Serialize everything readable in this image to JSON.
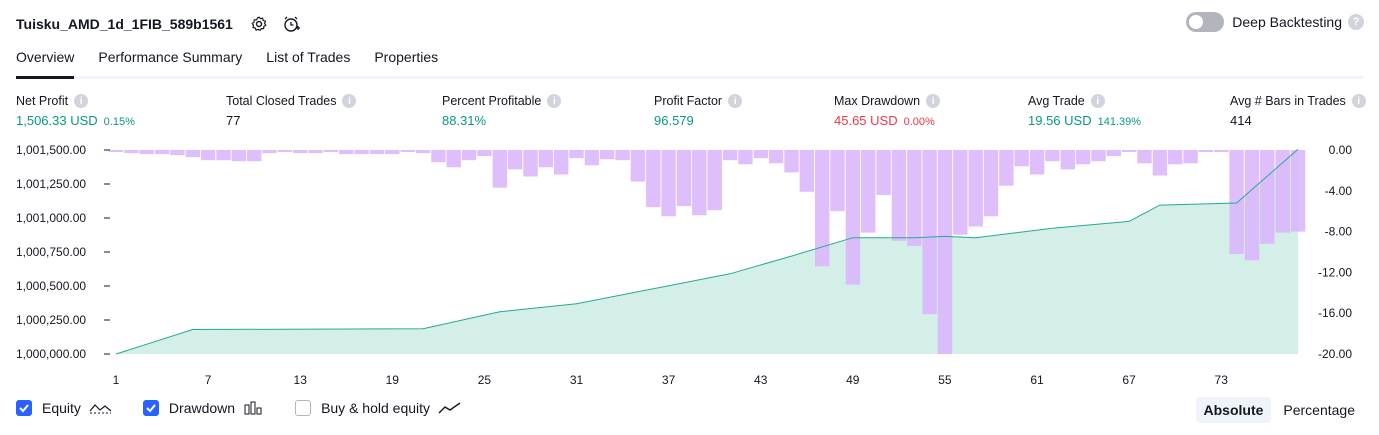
{
  "header": {
    "title": "Tuisku_AMD_1d_1FIB_589b1561",
    "settings_icon": "gear-icon",
    "alert_icon": "alarm-clock-plus-icon"
  },
  "deep_backtesting": {
    "label": "Deep Backtesting",
    "enabled": false
  },
  "tabs": [
    {
      "label": "Overview",
      "active": true
    },
    {
      "label": "Performance Summary",
      "active": false
    },
    {
      "label": "List of Trades",
      "active": false
    },
    {
      "label": "Properties",
      "active": false
    }
  ],
  "stats": {
    "net_profit": {
      "label": "Net Profit",
      "value": "1,506.33 USD",
      "pct": "0.15%"
    },
    "total_closed_trades": {
      "label": "Total Closed Trades",
      "value": "77"
    },
    "percent_profitable": {
      "label": "Percent Profitable",
      "value": "88.31%"
    },
    "profit_factor": {
      "label": "Profit Factor",
      "value": "96.579"
    },
    "max_drawdown": {
      "label": "Max Drawdown",
      "value": "45.65 USD",
      "pct": "0.00%"
    },
    "avg_trade": {
      "label": "Avg Trade",
      "value": "19.56 USD",
      "pct": "141.39%"
    },
    "avg_bars": {
      "label": "Avg # Bars in Trades",
      "value": "414"
    }
  },
  "colors": {
    "equity_line": "#22ab94",
    "equity_fill": "#d4efe7",
    "drawdown_bar": "#d9b3fb",
    "positive": "#089981",
    "negative": "#f23645",
    "accent": "#2962ff"
  },
  "chart_data": {
    "type": "area",
    "x_ticks": [
      "1",
      "7",
      "13",
      "19",
      "25",
      "31",
      "37",
      "43",
      "49",
      "55",
      "61",
      "67",
      "73"
    ],
    "left_axis": {
      "ticks": [
        "1,001,500.00",
        "1,001,250.00",
        "1,001,000.00",
        "1,000,750.00",
        "1,000,500.00",
        "1,000,250.00",
        "1,000,000.00"
      ],
      "range": [
        1000000,
        1001500
      ]
    },
    "right_axis": {
      "ticks": [
        "0.00",
        "-4.00",
        "-8.00",
        "-12.00",
        "-16.00",
        "-20.00"
      ],
      "range": [
        -20,
        0
      ]
    },
    "series": [
      {
        "name": "Equity",
        "x": [
          1,
          6,
          21,
          26,
          31,
          36,
          41,
          45,
          49,
          53,
          55,
          57,
          62,
          66,
          67,
          69,
          74,
          78
        ],
        "y": [
          1000000,
          1000180,
          1000185,
          1000310,
          1000370,
          1000480,
          1000590,
          1000720,
          1000855,
          1000855,
          1000865,
          1000855,
          1000925,
          1000965,
          1000975,
          1001095,
          1001110,
          1001506
        ]
      },
      {
        "name": "Drawdown",
        "x": [
          1,
          2,
          3,
          4,
          5,
          6,
          7,
          8,
          9,
          10,
          11,
          12,
          13,
          14,
          15,
          16,
          17,
          18,
          19,
          20,
          21,
          22,
          23,
          24,
          25,
          26,
          27,
          28,
          29,
          30,
          31,
          32,
          33,
          34,
          35,
          36,
          37,
          38,
          39,
          40,
          41,
          42,
          43,
          44,
          45,
          46,
          47,
          48,
          49,
          50,
          51,
          52,
          53,
          54,
          55,
          56,
          57,
          58,
          59,
          60,
          61,
          62,
          63,
          64,
          65,
          66,
          67,
          68,
          69,
          70,
          71,
          72,
          73,
          74,
          75,
          76,
          77,
          78
        ],
        "y": [
          0,
          -0.3,
          -0.4,
          -0.4,
          -0.5,
          -0.7,
          -1.0,
          -1.0,
          -1.1,
          -1.1,
          -0.3,
          -0.2,
          -0.3,
          -0.3,
          -0.2,
          -0.4,
          -0.4,
          -0.4,
          -0.4,
          -0.2,
          -0.3,
          -1.2,
          -1.7,
          -1.0,
          -0.6,
          -3.7,
          -1.9,
          -2.6,
          -1.7,
          -2.4,
          -0.8,
          -1.5,
          -0.9,
          -1.0,
          -3.1,
          -5.6,
          -6.5,
          -5.5,
          -6.4,
          -5.9,
          -1.0,
          -1.4,
          -0.8,
          -1.3,
          -2.2,
          -4.1,
          -11.4,
          -6.0,
          -13.2,
          -8.1,
          -4.4,
          -8.9,
          -9.4,
          -16.1,
          -20.0,
          -8.3,
          -7.5,
          -6.5,
          -3.5,
          -1.6,
          -2.4,
          -1.1,
          -1.9,
          -1.4,
          -1.1,
          -0.6,
          -0.1,
          -1.3,
          -2.5,
          -1.4,
          -1.3,
          -0.2,
          0,
          -10.2,
          -10.8,
          -9.2,
          -8.1,
          -8.0
        ]
      }
    ]
  },
  "legend": [
    {
      "label": "Equity",
      "checked": true,
      "icon": "equity-line-icon"
    },
    {
      "label": "Drawdown",
      "checked": true,
      "icon": "bar-chart-icon"
    },
    {
      "label": "Buy & hold equity",
      "checked": false,
      "icon": "trend-line-icon"
    }
  ],
  "scale_toggle": {
    "absolute": "Absolute",
    "percentage": "Percentage",
    "selected": "Absolute"
  }
}
